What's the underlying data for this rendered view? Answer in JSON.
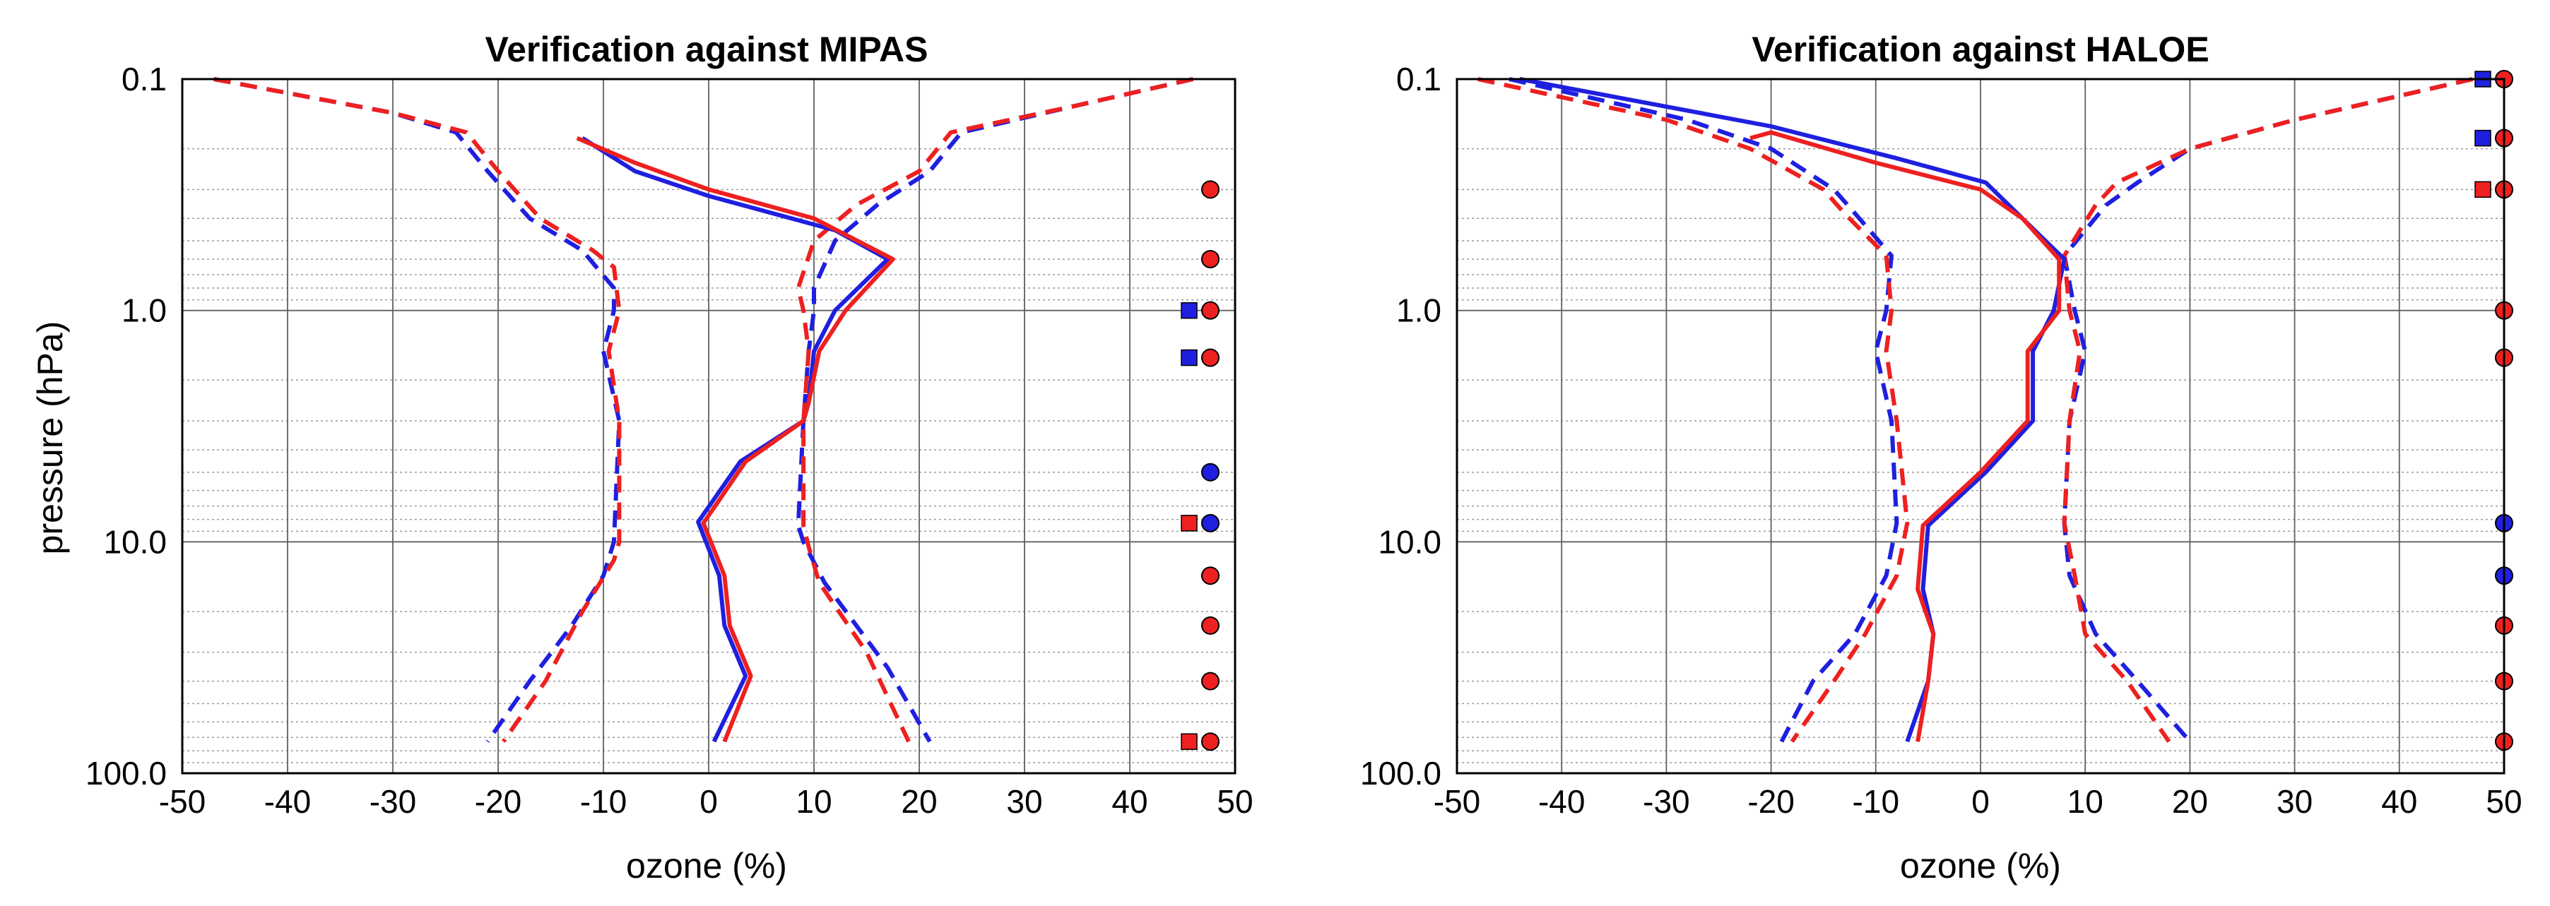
{
  "chart_data": [
    {
      "type": "line",
      "title": "Verification against MIPAS",
      "xlabel": "ozone (%)",
      "ylabel": "pressure (hPa)",
      "xlim": [
        -50,
        50
      ],
      "ylim": [
        100,
        0.1
      ],
      "yscale": "log",
      "grid": true,
      "xticks": [
        -50,
        -40,
        -30,
        -20,
        -10,
        0,
        10,
        20,
        30,
        40,
        50
      ],
      "xtick_labels": [
        "-50",
        "-40",
        "-30",
        "-20",
        "-10",
        "0",
        "10",
        "20",
        "30",
        "40",
        "50"
      ],
      "yticks": [
        0.1,
        1.0,
        10.0,
        100.0
      ],
      "ytick_labels": [
        "0.1",
        "1.0",
        "10.0",
        "100.0"
      ],
      "series": [
        {
          "name": "blue mean",
          "color": "#1f1fe0",
          "style": "solid",
          "points": [
            [
              -12,
              0.18
            ],
            [
              -7,
              0.25
            ],
            [
              0,
              0.32
            ],
            [
              12,
              0.45
            ],
            [
              17,
              0.6
            ],
            [
              12,
              1.0
            ],
            [
              10,
              1.5
            ],
            [
              9.5,
              2.5
            ],
            [
              9,
              3.0
            ],
            [
              3,
              4.5
            ],
            [
              -1,
              8.2
            ],
            [
              1,
              14
            ],
            [
              1.5,
              23
            ],
            [
              3.5,
              38
            ],
            [
              0.5,
              73
            ]
          ]
        },
        {
          "name": "red mean",
          "color": "#ee2020",
          "style": "solid",
          "points": [
            [
              -12.5,
              0.18
            ],
            [
              -7,
              0.23
            ],
            [
              0,
              0.3
            ],
            [
              10,
              0.4
            ],
            [
              17.5,
              0.6
            ],
            [
              13,
              1.0
            ],
            [
              10.5,
              1.5
            ],
            [
              9.5,
              2.5
            ],
            [
              9,
              3.0
            ],
            [
              3.5,
              4.5
            ],
            [
              -0.5,
              8.3
            ],
            [
              1.5,
              14
            ],
            [
              2,
              23
            ],
            [
              4,
              38
            ],
            [
              1.5,
              73
            ]
          ]
        },
        {
          "name": "blue std lower",
          "color": "#1f1fe0",
          "style": "dashed",
          "points": [
            [
              -47,
              0.1
            ],
            [
              -30,
              0.14
            ],
            [
              -24,
              0.17
            ],
            [
              -21,
              0.25
            ],
            [
              -17,
              0.4
            ],
            [
              -12,
              0.55
            ],
            [
              -9,
              0.8
            ],
            [
              -9,
              1.0
            ],
            [
              -10,
              1.5
            ],
            [
              -8.5,
              3.0
            ],
            [
              -9,
              10
            ],
            [
              -10,
              14
            ],
            [
              -13,
              23
            ],
            [
              -17,
              40
            ],
            [
              -21,
              73
            ]
          ]
        },
        {
          "name": "red std lower",
          "color": "#ee2020",
          "style": "dashed",
          "points": [
            [
              -47,
              0.1
            ],
            [
              -30,
              0.14
            ],
            [
              -23,
              0.17
            ],
            [
              -20,
              0.25
            ],
            [
              -16,
              0.4
            ],
            [
              -11,
              0.55
            ],
            [
              -9,
              0.65
            ],
            [
              -8.5,
              1.0
            ],
            [
              -9.5,
              1.5
            ],
            [
              -8.5,
              3.0
            ],
            [
              -8.5,
              10
            ],
            [
              -9,
              12
            ],
            [
              -12,
              20
            ],
            [
              -15.5,
              40
            ],
            [
              -19.5,
              73
            ]
          ]
        },
        {
          "name": "blue std upper",
          "color": "#1f1fe0",
          "style": "dashed",
          "points": [
            [
              46,
              0.1
            ],
            [
              35,
              0.13
            ],
            [
              24,
              0.17
            ],
            [
              21,
              0.25
            ],
            [
              16,
              0.35
            ],
            [
              12,
              0.5
            ],
            [
              10,
              0.8
            ],
            [
              10,
              1.0
            ],
            [
              9.5,
              1.5
            ],
            [
              9,
              3.0
            ],
            [
              8.5,
              8.5
            ],
            [
              9,
              10
            ],
            [
              11,
              15
            ],
            [
              17,
              35
            ],
            [
              21,
              73
            ]
          ]
        },
        {
          "name": "red std upper",
          "color": "#ee2020",
          "style": "dashed",
          "points": [
            [
              46,
              0.1
            ],
            [
              35,
              0.13
            ],
            [
              23,
              0.17
            ],
            [
              20,
              0.25
            ],
            [
              14,
              0.35
            ],
            [
              10,
              0.5
            ],
            [
              8.5,
              0.8
            ],
            [
              9,
              1.0
            ],
            [
              9.5,
              1.5
            ],
            [
              9,
              3.0
            ],
            [
              9,
              8.5
            ],
            [
              9.5,
              10.5
            ],
            [
              10.5,
              15
            ],
            [
              15,
              30
            ],
            [
              19,
              73
            ]
          ]
        }
      ],
      "markers": [
        {
          "shape": "circle",
          "color": "#ee2020",
          "y": 0.3
        },
        {
          "shape": "circle",
          "color": "#ee2020",
          "y": 0.6
        },
        {
          "shape": "square",
          "color": "#1f1fe0",
          "y": 1.0
        },
        {
          "shape": "circle",
          "color": "#ee2020",
          "y": 1.0
        },
        {
          "shape": "square",
          "color": "#1f1fe0",
          "y": 1.6
        },
        {
          "shape": "circle",
          "color": "#ee2020",
          "y": 1.6
        },
        {
          "shape": "circle",
          "color": "#1f1fe0",
          "y": 5.0
        },
        {
          "shape": "square",
          "color": "#ee2020",
          "y": 8.3
        },
        {
          "shape": "circle",
          "color": "#1f1fe0",
          "y": 8.3
        },
        {
          "shape": "circle",
          "color": "#ee2020",
          "y": 14
        },
        {
          "shape": "circle",
          "color": "#ee2020",
          "y": 23
        },
        {
          "shape": "circle",
          "color": "#ee2020",
          "y": 40
        },
        {
          "shape": "square",
          "color": "#ee2020",
          "y": 73
        },
        {
          "shape": "circle",
          "color": "#ee2020",
          "y": 73
        }
      ]
    },
    {
      "type": "line",
      "title": "Verification against HALOE",
      "xlabel": "ozone (%)",
      "ylabel": "",
      "xlim": [
        -50,
        50
      ],
      "ylim": [
        100,
        0.1
      ],
      "yscale": "log",
      "grid": true,
      "xticks": [
        -50,
        -40,
        -30,
        -20,
        -10,
        0,
        10,
        20,
        30,
        40,
        50
      ],
      "xtick_labels": [
        "-50",
        "-40",
        "-30",
        "-20",
        "-10",
        "0",
        "10",
        "20",
        "30",
        "40",
        "50"
      ],
      "yticks": [
        0.1,
        1.0,
        10.0,
        100.0
      ],
      "ytick_labels": [
        "0.1",
        "1.0",
        "10.0",
        "100.0"
      ],
      "series": [
        {
          "name": "blue mean",
          "color": "#1f1fe0",
          "style": "solid",
          "points": [
            [
              -44,
              0.1
            ],
            [
              -20,
              0.16
            ],
            [
              -8,
              0.22
            ],
            [
              0.5,
              0.28
            ],
            [
              4,
              0.4
            ],
            [
              8,
              0.6
            ],
            [
              7,
              1.0
            ],
            [
              5,
              1.5
            ],
            [
              5,
              3.0
            ],
            [
              0.5,
              5.0
            ],
            [
              -5,
              8.5
            ],
            [
              -5.5,
              16
            ],
            [
              -4.5,
              25
            ],
            [
              -5,
              40
            ],
            [
              -7,
              73
            ]
          ]
        },
        {
          "name": "red mean",
          "color": "#ee2020",
          "style": "solid",
          "points": [
            [
              -22,
              0.18
            ],
            [
              -20,
              0.17
            ],
            [
              -10,
              0.23
            ],
            [
              0,
              0.3
            ],
            [
              4,
              0.4
            ],
            [
              7.5,
              0.6
            ],
            [
              7.5,
              1.0
            ],
            [
              4.5,
              1.5
            ],
            [
              4.5,
              3.0
            ],
            [
              0,
              5.0
            ],
            [
              -5.5,
              8.5
            ],
            [
              -6,
              16
            ],
            [
              -4.5,
              25
            ],
            [
              -5,
              40
            ],
            [
              -6,
              73
            ]
          ]
        },
        {
          "name": "blue std lower",
          "color": "#1f1fe0",
          "style": "dashed",
          "points": [
            [
              -45,
              0.1
            ],
            [
              -28,
              0.15
            ],
            [
              -20,
              0.2
            ],
            [
              -14,
              0.3
            ],
            [
              -12,
              0.38
            ],
            [
              -8.5,
              0.58
            ],
            [
              -9,
              1.0
            ],
            [
              -10,
              1.5
            ],
            [
              -8.5,
              3.0
            ],
            [
              -8,
              8.3
            ],
            [
              -9,
              14
            ],
            [
              -12,
              25
            ],
            [
              -16,
              40
            ],
            [
              -19,
              73
            ]
          ]
        },
        {
          "name": "red std lower",
          "color": "#ee2020",
          "style": "dashed",
          "points": [
            [
              -48,
              0.1
            ],
            [
              -30,
              0.15
            ],
            [
              -22,
              0.2
            ],
            [
              -15,
              0.3
            ],
            [
              -13,
              0.38
            ],
            [
              -9,
              0.58
            ],
            [
              -8.5,
              1.0
            ],
            [
              -9,
              1.5
            ],
            [
              -8,
              3.0
            ],
            [
              -7,
              8.3
            ],
            [
              -8,
              14
            ],
            [
              -11,
              25
            ],
            [
              -14,
              40
            ],
            [
              -18,
              73
            ]
          ]
        },
        {
          "name": "blue std upper",
          "color": "#1f1fe0",
          "style": "dashed",
          "points": [
            [
              47,
              0.1
            ],
            [
              30,
              0.15
            ],
            [
              20,
              0.2
            ],
            [
              15,
              0.28
            ],
            [
              12,
              0.35
            ],
            [
              8,
              0.58
            ],
            [
              9,
              1.0
            ],
            [
              10,
              1.5
            ],
            [
              8.5,
              3.0
            ],
            [
              8,
              8.3
            ],
            [
              8.5,
              14
            ],
            [
              11,
              25
            ],
            [
              15,
              40
            ],
            [
              20,
              73
            ]
          ]
        },
        {
          "name": "red std upper",
          "color": "#ee2020",
          "style": "dashed",
          "points": [
            [
              47,
              0.1
            ],
            [
              30,
              0.15
            ],
            [
              20,
              0.2
            ],
            [
              13,
              0.28
            ],
            [
              11,
              0.35
            ],
            [
              8,
              0.58
            ],
            [
              8.5,
              1.0
            ],
            [
              9.5,
              1.5
            ],
            [
              8.5,
              3.0
            ],
            [
              8,
              8.3
            ],
            [
              9,
              14
            ],
            [
              10,
              25
            ],
            [
              14,
              40
            ],
            [
              18,
              73
            ]
          ]
        }
      ],
      "markers": [
        {
          "shape": "square",
          "color": "#1f1fe0",
          "y": 0.1
        },
        {
          "shape": "circle",
          "color": "#ee2020",
          "y": 0.1
        },
        {
          "shape": "square",
          "color": "#1f1fe0",
          "y": 0.18
        },
        {
          "shape": "circle",
          "color": "#ee2020",
          "y": 0.18
        },
        {
          "shape": "square",
          "color": "#ee2020",
          "y": 0.3
        },
        {
          "shape": "circle",
          "color": "#ee2020",
          "y": 0.3
        },
        {
          "shape": "circle",
          "color": "#ee2020",
          "y": 1.0
        },
        {
          "shape": "circle",
          "color": "#ee2020",
          "y": 1.6
        },
        {
          "shape": "circle",
          "color": "#1f1fe0",
          "y": 8.3
        },
        {
          "shape": "circle",
          "color": "#1f1fe0",
          "y": 14
        },
        {
          "shape": "circle",
          "color": "#ee2020",
          "y": 23
        },
        {
          "shape": "circle",
          "color": "#ee2020",
          "y": 40
        },
        {
          "shape": "circle",
          "color": "#ee2020",
          "y": 73
        }
      ]
    }
  ]
}
